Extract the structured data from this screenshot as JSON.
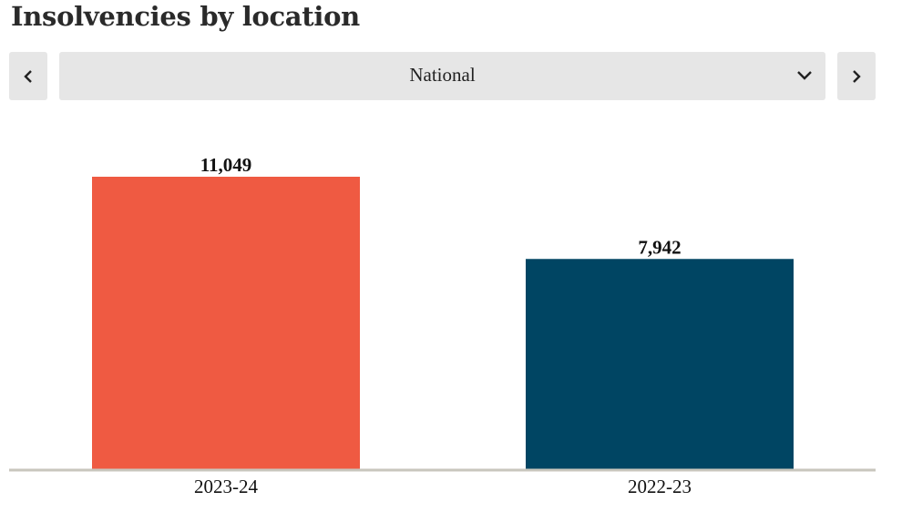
{
  "header": {
    "title": "Insolvencies by location"
  },
  "location_selector": {
    "selected": "National",
    "prev_icon": "chevron-left-icon",
    "next_icon": "chevron-right-icon",
    "dropdown_icon": "chevron-down-icon"
  },
  "chart_data": {
    "type": "bar",
    "categories": [
      "2023-24",
      "2022-23"
    ],
    "values": [
      11049,
      7942
    ],
    "value_labels": [
      "11,049",
      "7,942"
    ],
    "colors": [
      "#ef5a42",
      "#004563"
    ],
    "ylim": [
      0,
      11049
    ],
    "grid": false,
    "legend": "none",
    "axis_color": "#c8c6bd"
  }
}
